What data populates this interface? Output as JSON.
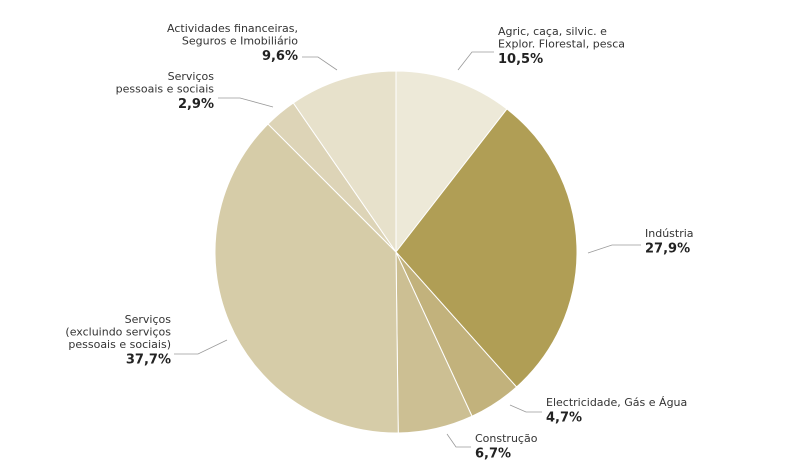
{
  "chart_data": {
    "type": "pie",
    "slices": [
      {
        "label": [
          "Agric, caça, silvic. e",
          "Explor. Florestal, pesca"
        ],
        "value": 10.5,
        "value_label": "10,5%",
        "color": "#ede9d8"
      },
      {
        "label": [
          "Indústria"
        ],
        "value": 27.9,
        "value_label": "27,9%",
        "color": "#b09e55"
      },
      {
        "label": [
          "Electricidade, Gás e Água"
        ],
        "value": 4.7,
        "value_label": "4,7%",
        "color": "#c2b27c"
      },
      {
        "label": [
          "Construção"
        ],
        "value": 6.7,
        "value_label": "6,7%",
        "color": "#ccbf93"
      },
      {
        "label": [
          "Serviços",
          "(excluindo serviços",
          "pessoais e sociais)"
        ],
        "value": 37.7,
        "value_label": "37,7%",
        "color": "#d6cca8"
      },
      {
        "label": [
          "Serviços",
          "pessoais e sociais"
        ],
        "value": 2.9,
        "value_label": "2,9%",
        "color": "#ddd4b7"
      },
      {
        "label": [
          "Actividades financeiras,",
          "Seguros e Imobiliário"
        ],
        "value": 9.6,
        "value_label": "9,6%",
        "color": "#e7e1cb"
      }
    ]
  }
}
